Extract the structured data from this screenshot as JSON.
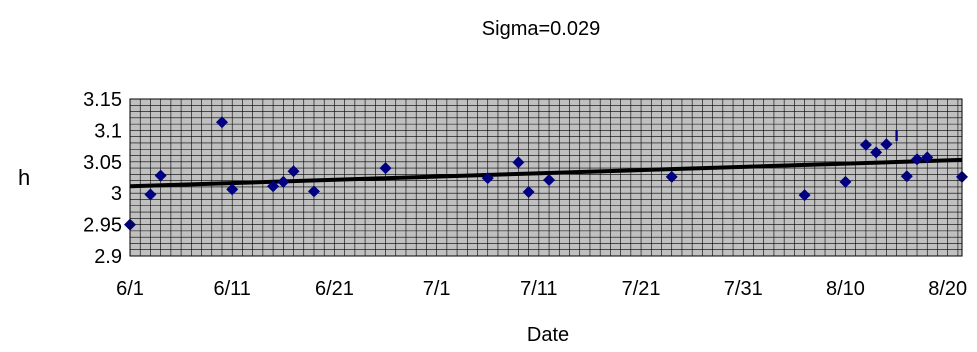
{
  "chart_data": {
    "type": "scatter",
    "title": "Sigma=0.029",
    "xlabel": "Date",
    "ylabel": "h",
    "x_tick_labels": [
      "6/1",
      "6/11",
      "6/21",
      "7/1",
      "7/11",
      "7/21",
      "7/31",
      "8/10",
      "8/20"
    ],
    "x_tick_days": [
      0,
      10,
      20,
      30,
      40,
      50,
      60,
      70,
      80
    ],
    "xlim_days": [
      0,
      81.4
    ],
    "y_tick_labels": [
      "3.15",
      "3.1",
      "3.05",
      "3",
      "2.95",
      "2.9"
    ],
    "ylim": [
      2.9,
      3.15
    ],
    "grid": true,
    "legend": "none",
    "colors": {
      "plot_background": "#c0c0c0",
      "grid": "#000000",
      "marker": "#000080",
      "trendline": "#000000"
    },
    "series": [
      {
        "marker": "diamond",
        "x": [
          0,
          2,
          3,
          9,
          10,
          14,
          15,
          16,
          18,
          25,
          35,
          38,
          39,
          41,
          53,
          66,
          70,
          72,
          73,
          74,
          76,
          77,
          78,
          81.4
        ],
        "y": [
          2.95,
          2.998,
          3.028,
          3.113,
          3.006,
          3.011,
          3.018,
          3.035,
          3.003,
          3.04,
          3.024,
          3.049,
          3.002,
          3.021,
          3.026,
          2.997,
          3.018,
          3.077,
          3.065,
          3.078,
          3.027,
          3.054,
          3.057,
          3.026
        ]
      }
    ],
    "trendline": {
      "x": [
        0,
        81.4
      ],
      "y": [
        3.011,
        3.053
      ]
    },
    "annotations": [
      {
        "text": "I",
        "x": 75,
        "y": 3.083
      }
    ]
  }
}
